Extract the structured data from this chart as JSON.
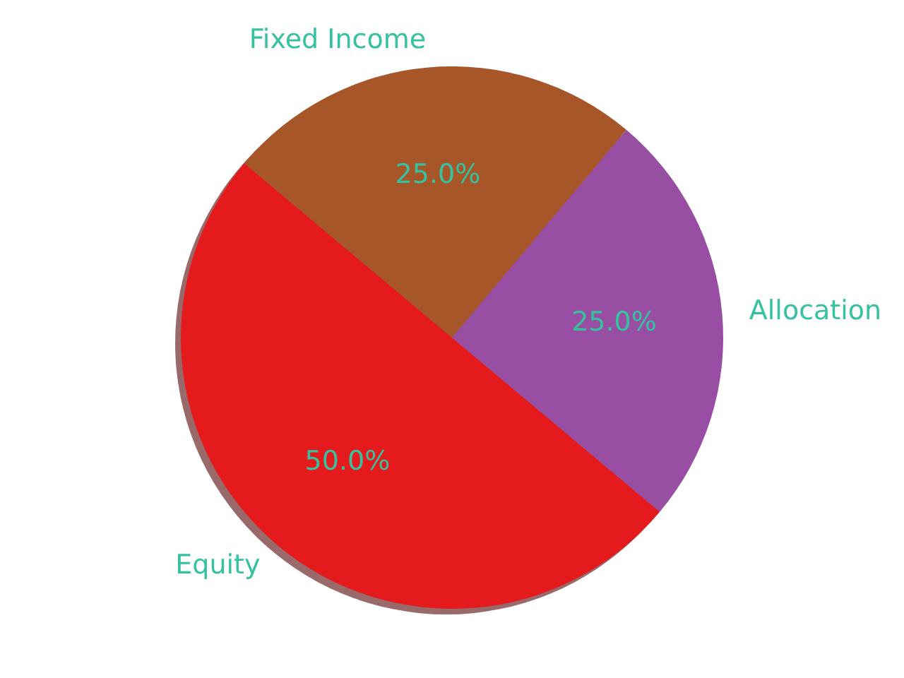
{
  "chart_data": {
    "type": "pie",
    "categories": [
      "Equity",
      "Allocation",
      "Fixed Income"
    ],
    "values": [
      50,
      25,
      25
    ],
    "colors": [
      "#e41a1c",
      "#984ea3",
      "#a65628"
    ],
    "value_labels": [
      "50.0%",
      "25.0%",
      "25.0%"
    ]
  }
}
